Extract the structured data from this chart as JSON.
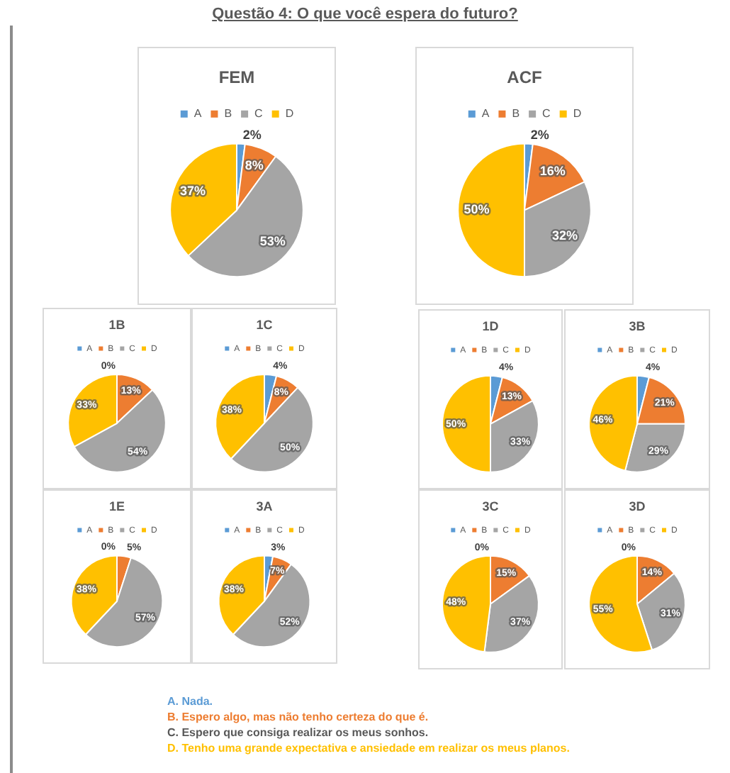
{
  "chart_data": [
    {
      "type": "other",
      "title": "Questão 4: O que você espera do futuro?"
    },
    {
      "type": "pie",
      "title": "FEM",
      "categories": [
        "A",
        "B",
        "C",
        "D"
      ],
      "values": [
        2,
        8,
        53,
        37
      ],
      "value_labels": [
        "2%",
        "8%",
        "53%",
        "37%"
      ],
      "colors": [
        "#5b9bd5",
        "#ed7d31",
        "#a5a5a5",
        "#ffc000"
      ],
      "legend": "top"
    },
    {
      "type": "pie",
      "title": "ACF",
      "categories": [
        "A",
        "B",
        "C",
        "D"
      ],
      "values": [
        2,
        16,
        32,
        50
      ],
      "value_labels": [
        "2%",
        "16%",
        "32%",
        "50%"
      ],
      "colors": [
        "#5b9bd5",
        "#ed7d31",
        "#a5a5a5",
        "#ffc000"
      ],
      "legend": "top"
    },
    {
      "type": "pie",
      "title": "1B",
      "categories": [
        "A",
        "B",
        "C",
        "D"
      ],
      "values": [
        0,
        13,
        54,
        33
      ],
      "value_labels": [
        "0%",
        "13%",
        "54%",
        "33%"
      ],
      "colors": [
        "#5b9bd5",
        "#ed7d31",
        "#a5a5a5",
        "#ffc000"
      ],
      "legend": "top"
    },
    {
      "type": "pie",
      "title": "1C",
      "categories": [
        "A",
        "B",
        "C",
        "D"
      ],
      "values": [
        4,
        8,
        50,
        38
      ],
      "value_labels": [
        "4%",
        "8%",
        "50%",
        "38%"
      ],
      "colors": [
        "#5b9bd5",
        "#ed7d31",
        "#a5a5a5",
        "#ffc000"
      ],
      "legend": "top"
    },
    {
      "type": "pie",
      "title": "1E",
      "categories": [
        "A",
        "B",
        "C",
        "D"
      ],
      "values": [
        0,
        5,
        57,
        38
      ],
      "value_labels": [
        "0%",
        "5%",
        "57%",
        "38%"
      ],
      "colors": [
        "#5b9bd5",
        "#ed7d31",
        "#a5a5a5",
        "#ffc000"
      ],
      "legend": "top"
    },
    {
      "type": "pie",
      "title": "3A",
      "categories": [
        "A",
        "B",
        "C",
        "D"
      ],
      "values": [
        3,
        7,
        52,
        38
      ],
      "value_labels": [
        "3%",
        "7%",
        "52%",
        "38%"
      ],
      "colors": [
        "#5b9bd5",
        "#ed7d31",
        "#a5a5a5",
        "#ffc000"
      ],
      "legend": "top"
    },
    {
      "type": "pie",
      "title": "1D",
      "categories": [
        "A",
        "B",
        "C",
        "D"
      ],
      "values": [
        4,
        13,
        33,
        50
      ],
      "value_labels": [
        "4%",
        "13%",
        "33%",
        "50%"
      ],
      "colors": [
        "#5b9bd5",
        "#ed7d31",
        "#a5a5a5",
        "#ffc000"
      ],
      "legend": "top"
    },
    {
      "type": "pie",
      "title": "3B",
      "categories": [
        "A",
        "B",
        "C",
        "D"
      ],
      "values": [
        4,
        21,
        29,
        46
      ],
      "value_labels": [
        "4%",
        "21%",
        "29%",
        "46%"
      ],
      "colors": [
        "#5b9bd5",
        "#ed7d31",
        "#a5a5a5",
        "#ffc000"
      ],
      "legend": "top"
    },
    {
      "type": "pie",
      "title": "3C",
      "categories": [
        "A",
        "B",
        "C",
        "D"
      ],
      "values": [
        0,
        15,
        37,
        48
      ],
      "value_labels": [
        "0%",
        "15%",
        "37%",
        "48%"
      ],
      "colors": [
        "#5b9bd5",
        "#ed7d31",
        "#a5a5a5",
        "#ffc000"
      ],
      "legend": "top"
    },
    {
      "type": "pie",
      "title": "3D",
      "categories": [
        "A",
        "B",
        "C",
        "D"
      ],
      "values": [
        0,
        14,
        31,
        55
      ],
      "value_labels": [
        "0%",
        "14%",
        "31%",
        "55%"
      ],
      "colors": [
        "#5b9bd5",
        "#ed7d31",
        "#a5a5a5",
        "#ffc000"
      ],
      "legend": "top"
    },
    {
      "type": "other",
      "annotations": [
        "A.  Nada.",
        "B.  Espero algo, mas não tenho certeza do que é.",
        "C.  Espero que consiga realizar os meus sonhos.",
        "D.  Tenho uma grande expectativa e ansiedade em realizar os meus planos."
      ]
    }
  ]
}
